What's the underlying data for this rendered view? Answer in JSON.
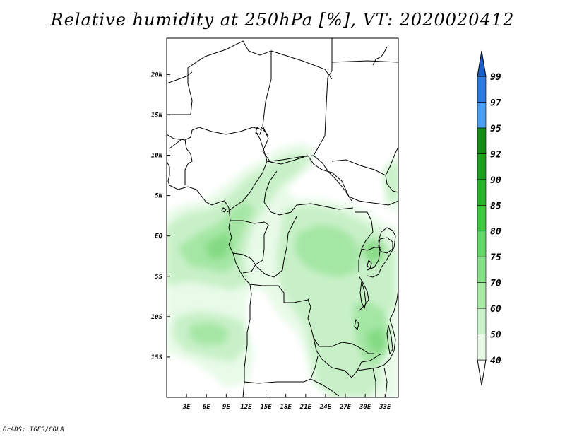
{
  "title": "Relative humidity at 250hPa [%], VT: 2020020412",
  "credit": "GrADS: IGES/COLA",
  "map": {
    "lon_range": [
      0.0,
      35.0
    ],
    "lat_range": [
      -20.0,
      24.5
    ],
    "lon_ticks": [
      {
        "value": 3,
        "label": "3E"
      },
      {
        "value": 6,
        "label": "6E"
      },
      {
        "value": 9,
        "label": "9E"
      },
      {
        "value": 12,
        "label": "12E"
      },
      {
        "value": 15,
        "label": "15E"
      },
      {
        "value": 18,
        "label": "18E"
      },
      {
        "value": 21,
        "label": "21E"
      },
      {
        "value": 24,
        "label": "24E"
      },
      {
        "value": 27,
        "label": "27E"
      },
      {
        "value": 30,
        "label": "30E"
      },
      {
        "value": 33,
        "label": "33E"
      }
    ],
    "lat_ticks": [
      {
        "value": 20,
        "label": "20N"
      },
      {
        "value": 15,
        "label": "15N"
      },
      {
        "value": 10,
        "label": "10N"
      },
      {
        "value": 5,
        "label": "5N"
      },
      {
        "value": 0,
        "label": "EQ"
      },
      {
        "value": -5,
        "label": "5S"
      },
      {
        "value": -10,
        "label": "10S"
      },
      {
        "value": -15,
        "label": "15S"
      }
    ]
  },
  "colorbar": {
    "levels": [
      "40",
      "50",
      "60",
      "70",
      "75",
      "80",
      "85",
      "90",
      "92",
      "95",
      "97",
      "99"
    ],
    "colors": [
      "#e6fae6",
      "#c9f2c9",
      "#a6eaa6",
      "#84e084",
      "#64d664",
      "#3ec83e",
      "#28b428",
      "#1ea01e",
      "#158c15",
      "#4a9df0",
      "#2a78e0",
      "#1c5fc8"
    ]
  }
}
